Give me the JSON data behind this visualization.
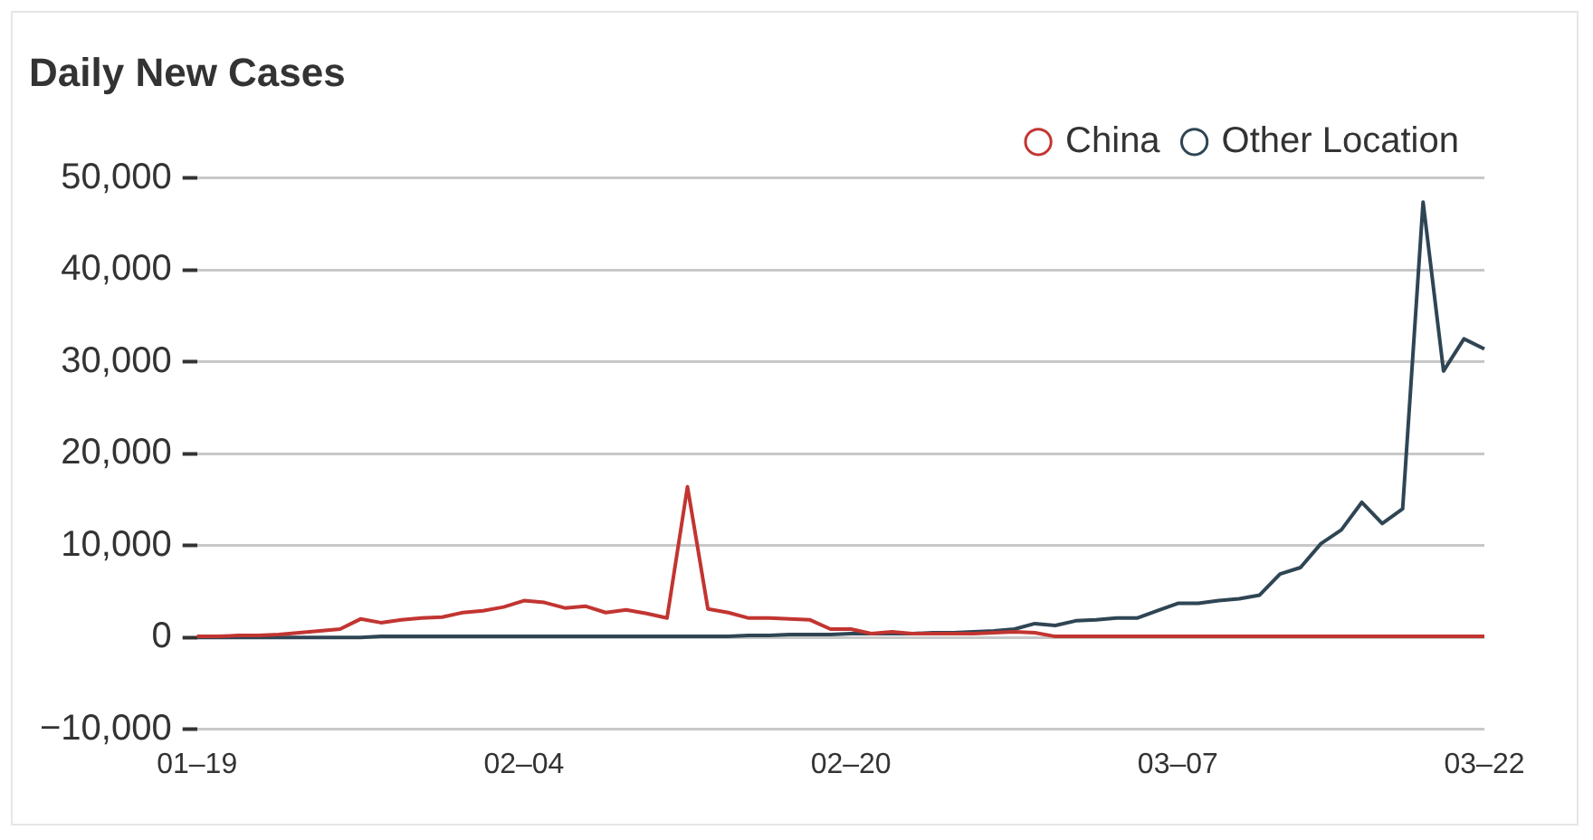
{
  "chart_data": {
    "type": "line",
    "title": "Daily New Cases",
    "categories": [
      "01–19",
      null,
      null,
      null,
      null,
      null,
      null,
      null,
      null,
      null,
      null,
      null,
      null,
      null,
      null,
      null,
      "02–04",
      null,
      null,
      null,
      null,
      null,
      null,
      null,
      null,
      null,
      null,
      null,
      null,
      null,
      null,
      null,
      "02–20",
      null,
      null,
      null,
      null,
      null,
      null,
      null,
      null,
      null,
      null,
      null,
      null,
      null,
      null,
      null,
      "03–07",
      null,
      null,
      null,
      null,
      null,
      null,
      null,
      null,
      null,
      null,
      null,
      null,
      null,
      null,
      "03–22"
    ],
    "series": [
      {
        "name": "China",
        "color": "#c23531",
        "values": [
          100,
          100,
          200,
          200,
          300,
          500,
          700,
          900,
          2000,
          1600,
          1900,
          2100,
          2200,
          2700,
          2900,
          3300,
          4000,
          3800,
          3200,
          3400,
          2700,
          3000,
          2600,
          2100,
          16400,
          3100,
          2700,
          2100,
          2100,
          2000,
          1900,
          900,
          900,
          400,
          600,
          400,
          400,
          400,
          400,
          500,
          600,
          500,
          100,
          100,
          100,
          100,
          100,
          100,
          100,
          100,
          100,
          100,
          100,
          100,
          100,
          100,
          100,
          100,
          100,
          100,
          100,
          100,
          100,
          100
        ]
      },
      {
        "name": "Other Location",
        "color": "#2f4554",
        "values": [
          0,
          0,
          0,
          0,
          0,
          0,
          0,
          0,
          0,
          100,
          100,
          100,
          100,
          100,
          100,
          100,
          100,
          100,
          100,
          100,
          100,
          100,
          100,
          100,
          100,
          100,
          100,
          200,
          200,
          300,
          300,
          300,
          400,
          400,
          400,
          400,
          500,
          500,
          600,
          700,
          900,
          1500,
          1300,
          1800,
          1900,
          2100,
          2100,
          2900,
          3700,
          3700,
          4000,
          4200,
          4600,
          6900,
          7600,
          10200,
          11700,
          14700,
          12400,
          14000,
          47400,
          29000,
          32500,
          31400
        ]
      }
    ],
    "ylim": [
      -10000,
      50000
    ],
    "yticks": [
      {
        "value": -10000,
        "label": "−10,000"
      },
      {
        "value": 0,
        "label": "0"
      },
      {
        "value": 10000,
        "label": "10,000"
      },
      {
        "value": 20000,
        "label": "20,000"
      },
      {
        "value": 30000,
        "label": "30,000"
      },
      {
        "value": 40000,
        "label": "40,000"
      },
      {
        "value": 50000,
        "label": "50,000"
      }
    ],
    "grid": "y",
    "legend": "top right",
    "marker": "none",
    "line_style": "solid"
  }
}
